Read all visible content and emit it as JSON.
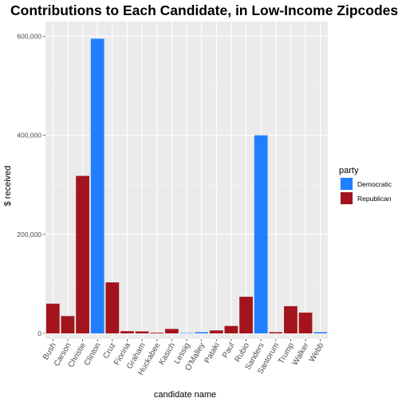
{
  "chart_data": {
    "type": "bar",
    "title": "Contributions to Each Candidate, in Low-Income Zipcodes",
    "xlabel": "candidate name",
    "ylabel": "$ received",
    "ylim": [
      0,
      620000
    ],
    "yticks": [
      0,
      200000,
      400000,
      600000
    ],
    "ytick_labels": [
      "0",
      "200,000",
      "400,000",
      "600,000"
    ],
    "grid": true,
    "legend": {
      "title": "party",
      "position": "right",
      "entries": [
        {
          "label": "Democratic",
          "color": "#1f7fff"
        },
        {
          "label": "Republican",
          "color": "#a3141c"
        }
      ]
    },
    "categories": [
      "Bush",
      "Carson",
      "Christie",
      "Clinton",
      "Cruz",
      "Fiorina",
      "Graham",
      "Huckabee",
      "Kasich",
      "Lessig",
      "O'Malley",
      "Pataki",
      "Paul",
      "Rubio",
      "Sanders",
      "Santorum",
      "Trump",
      "Walker",
      "Webb"
    ],
    "values": [
      60000,
      35000,
      318000,
      595000,
      103000,
      4500,
      4000,
      1500,
      9000,
      700,
      2500,
      6000,
      15000,
      74000,
      400000,
      2500,
      55000,
      42000,
      2500
    ],
    "party": [
      "Republican",
      "Republican",
      "Republican",
      "Democratic",
      "Republican",
      "Republican",
      "Republican",
      "Republican",
      "Republican",
      "Democratic",
      "Democratic",
      "Republican",
      "Republican",
      "Republican",
      "Democratic",
      "Republican",
      "Republican",
      "Republican",
      "Democratic"
    ],
    "colors": {
      "Democratic": "#1f7fff",
      "Republican": "#a3141c"
    },
    "panel_background": "#ebebeb"
  }
}
